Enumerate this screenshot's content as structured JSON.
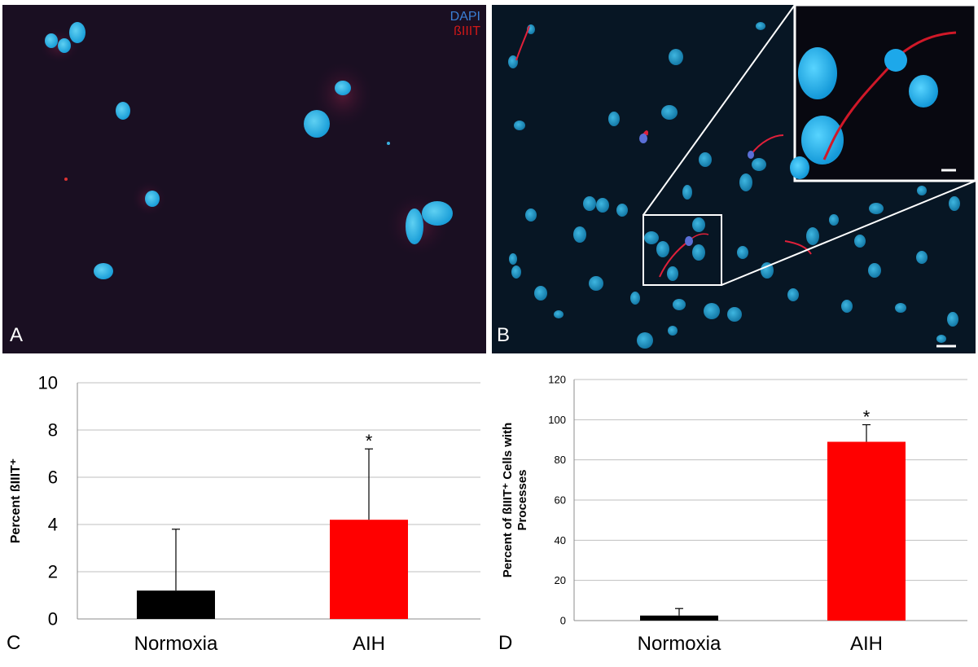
{
  "panels": {
    "A": {
      "letter": "A",
      "legend": {
        "dapi": "DAPI",
        "biiit": "ßIIIT"
      }
    },
    "B": {
      "letter": "B"
    },
    "C": {
      "letter": "C"
    },
    "D": {
      "letter": "D"
    }
  },
  "colors": {
    "dapi": "#3a9be0",
    "biiit": "#e02020",
    "normoxia_bar": "#000000",
    "aih_bar": "#ff0000",
    "nucleus": "#22b4e6"
  },
  "chart_data": [
    {
      "type": "bar",
      "panel": "C",
      "categories": [
        "Normoxia",
        "AIH"
      ],
      "values": [
        1.2,
        4.2
      ],
      "errors": [
        2.6,
        3.0
      ],
      "significance": [
        "",
        "*"
      ],
      "ylabel": "Percent ßIIIT⁺",
      "ylim": [
        0,
        10
      ],
      "yticks": [
        0,
        2,
        4,
        6,
        8,
        10
      ],
      "grid": true
    },
    {
      "type": "bar",
      "panel": "D",
      "categories": [
        "Normoxia",
        "AIH"
      ],
      "values": [
        2.5,
        89
      ],
      "errors": [
        3.5,
        8.5
      ],
      "significance": [
        "",
        "*"
      ],
      "ylabel_lines": [
        "Percent of ßIIIT⁺ Cells with",
        "Processes"
      ],
      "ylim": [
        0,
        120
      ],
      "yticks": [
        0,
        20,
        40,
        60,
        80,
        100,
        120
      ],
      "grid": true
    }
  ]
}
